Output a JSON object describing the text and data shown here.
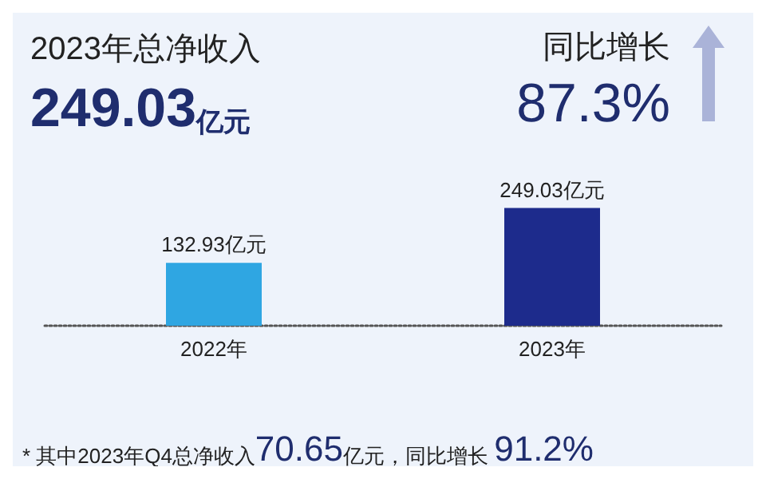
{
  "chart_data": {
    "type": "bar",
    "title": "2023年总净收入",
    "subtitle": "249.03亿元",
    "categories": [
      "2022年",
      "2023年"
    ],
    "values": [
      132.93,
      249.03
    ],
    "colors": [
      "#2fa6e2",
      "#1d2b8c"
    ],
    "value_labels": [
      "132.93亿元",
      "249.03亿元"
    ],
    "annotations": [
      "同比增长",
      "87.3%",
      "* 其中2023年Q4总净收入70.65亿元，同比增长 91.2%"
    ]
  }
}
